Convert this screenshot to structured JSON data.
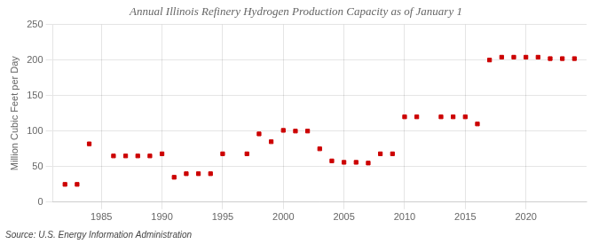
{
  "chart_data": {
    "type": "scatter",
    "title": "Annual Illinois Refinery Hydrogen Production Capacity as of January 1",
    "y_label": "Million Cubic Feet per Day",
    "annotation": "Source: U.S. Energy Information Administration",
    "x": [
      1982,
      1983,
      1984,
      1986,
      1987,
      1988,
      1989,
      1990,
      1991,
      1992,
      1993,
      1994,
      1995,
      1997,
      1998,
      1999,
      2000,
      2001,
      2002,
      2003,
      2004,
      2005,
      2006,
      2007,
      2008,
      2009,
      2010,
      2011,
      2013,
      2014,
      2015,
      2016,
      2017,
      2018,
      2019,
      2020,
      2021,
      2022,
      2023,
      2024
    ],
    "values": [
      25,
      25,
      82,
      65,
      65,
      65,
      65,
      68,
      35,
      40,
      40,
      40,
      68,
      68,
      96,
      85,
      101,
      100,
      100,
      75,
      58,
      56,
      56,
      55,
      68,
      68,
      120,
      120,
      120,
      120,
      120,
      110,
      200,
      204,
      204,
      204,
      204,
      202,
      202,
      202
    ],
    "color": "#cc0000",
    "marker": "square",
    "xlim": [
      1981,
      2025
    ],
    "ylim": [
      0,
      250
    ],
    "xticks": [
      1985,
      1990,
      1995,
      2000,
      2005,
      2010,
      2015,
      2020
    ],
    "yticks": [
      0,
      50,
      100,
      150,
      200,
      250
    ],
    "grid": true
  }
}
